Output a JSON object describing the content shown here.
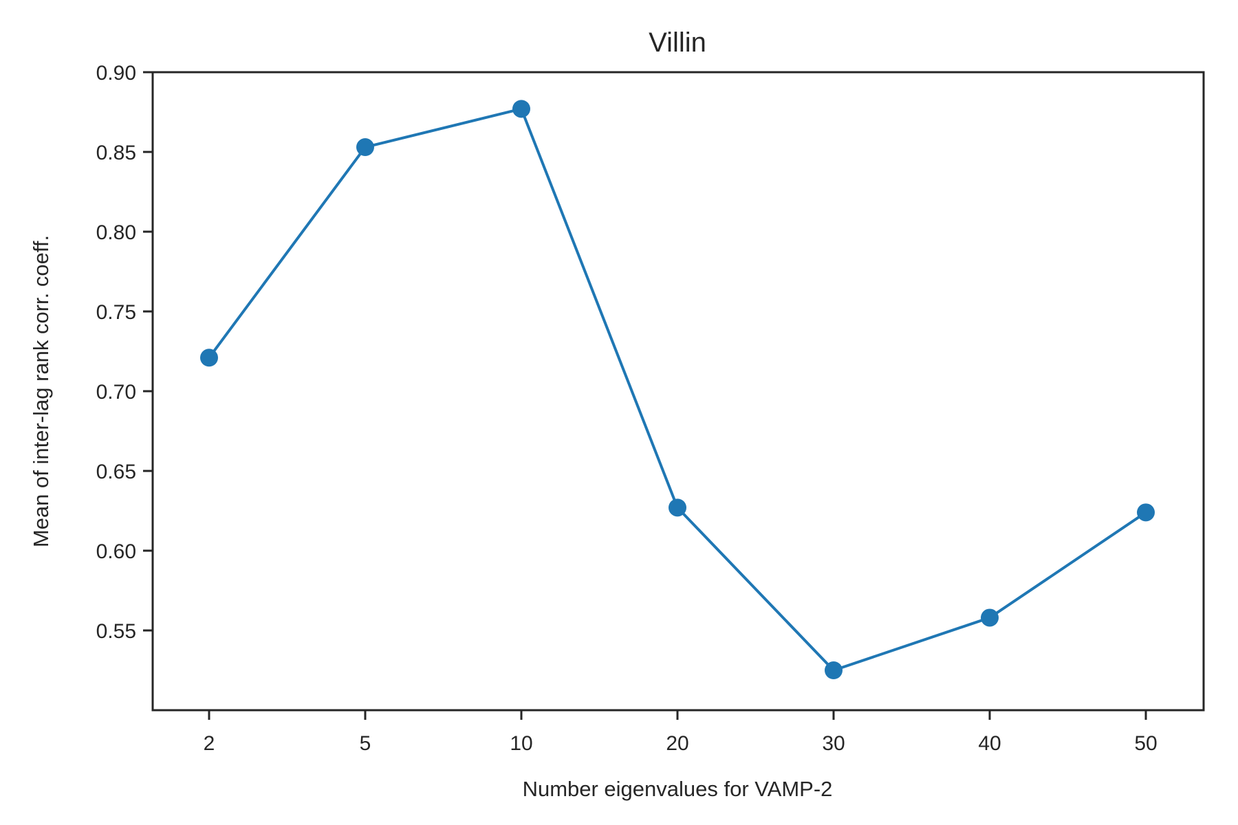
{
  "chart_data": {
    "type": "line",
    "title": "Villin",
    "xlabel": "Number eigenvalues for VAMP-2",
    "ylabel": "Mean of inter-lag rank corr. coeff.",
    "categories": [
      "2",
      "5",
      "10",
      "20",
      "30",
      "40",
      "50"
    ],
    "series": [
      {
        "values": [
          0.721,
          0.853,
          0.877,
          0.627,
          0.525,
          0.558,
          0.624
        ],
        "color": "#1f77b4",
        "marker": "circle"
      }
    ],
    "yticks": [
      "0.55",
      "0.60",
      "0.65",
      "0.70",
      "0.75",
      "0.80",
      "0.85",
      "0.90"
    ],
    "ylim": [
      0.5,
      0.9
    ],
    "grid": false,
    "legend": "none"
  }
}
